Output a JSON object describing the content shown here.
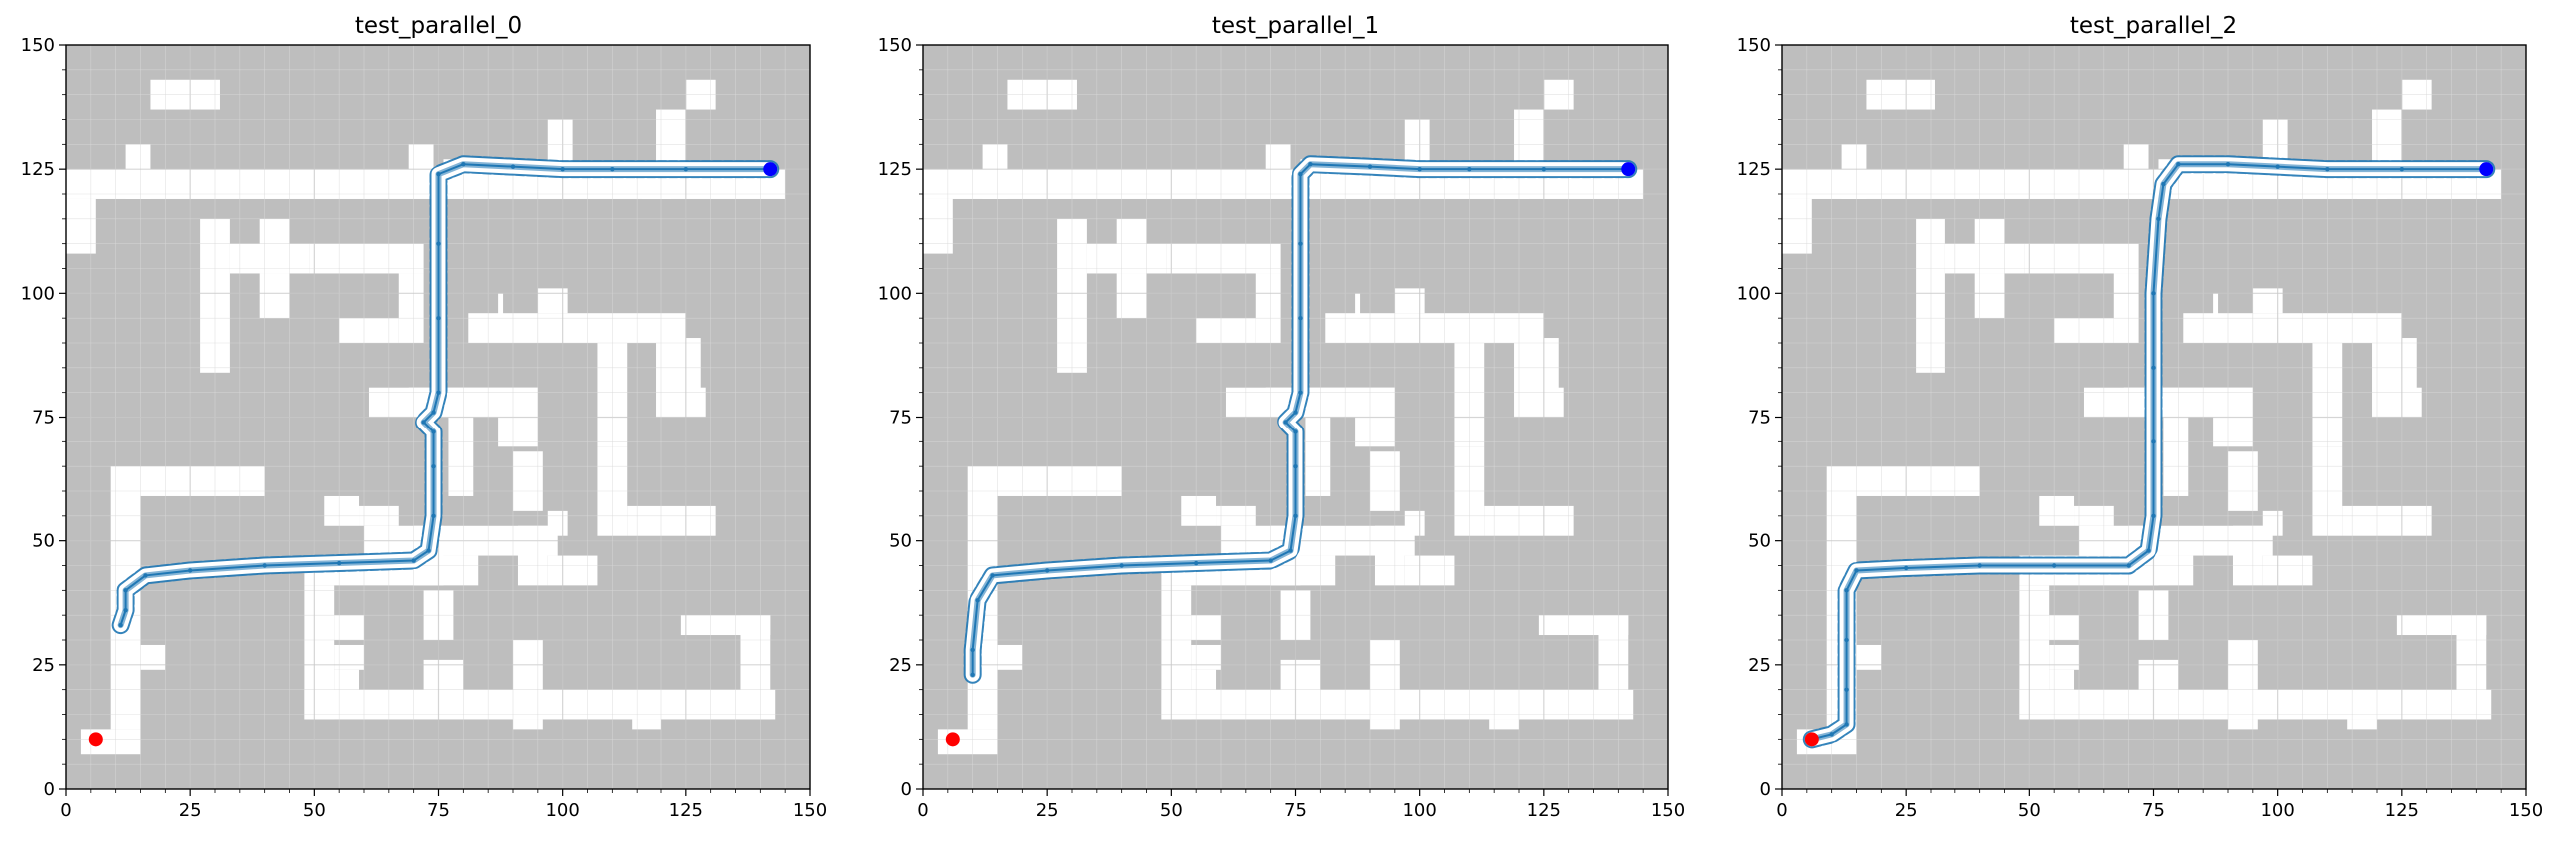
{
  "figure": {
    "colors": {
      "obstacle": "#bebebe",
      "free": "#ffffff",
      "grid": "#d9d9d9",
      "path": "#1f77b4",
      "start": "#ff0000",
      "goal": "#0000ff"
    }
  },
  "chart_data": [
    {
      "type": "scatter",
      "title": "test_parallel_0",
      "xlim": [
        0,
        150
      ],
      "ylim": [
        0,
        150
      ],
      "xticks": [
        0,
        25,
        50,
        75,
        100,
        125,
        150
      ],
      "yticks": [
        0,
        25,
        50,
        75,
        100,
        125,
        150
      ],
      "grid": true,
      "start": [
        6,
        10
      ],
      "goal": [
        142,
        125
      ],
      "path": [
        [
          11,
          33
        ],
        [
          12,
          36
        ],
        [
          12,
          40
        ],
        [
          16,
          43
        ],
        [
          25,
          44
        ],
        [
          40,
          45
        ],
        [
          55,
          45.5
        ],
        [
          70,
          46
        ],
        [
          73,
          48
        ],
        [
          74,
          55
        ],
        [
          74,
          65
        ],
        [
          74,
          72
        ],
        [
          72,
          74
        ],
        [
          74,
          76
        ],
        [
          75,
          80
        ],
        [
          75,
          95
        ],
        [
          75,
          110
        ],
        [
          75,
          124
        ],
        [
          80,
          126
        ],
        [
          90,
          125.5
        ],
        [
          100,
          125
        ],
        [
          110,
          125
        ],
        [
          125,
          125
        ],
        [
          142,
          125
        ]
      ]
    },
    {
      "type": "scatter",
      "title": "test_parallel_1",
      "xlim": [
        0,
        150
      ],
      "ylim": [
        0,
        150
      ],
      "xticks": [
        0,
        25,
        50,
        75,
        100,
        125,
        150
      ],
      "yticks": [
        0,
        25,
        50,
        75,
        100,
        125,
        150
      ],
      "grid": true,
      "start": [
        6,
        10
      ],
      "goal": [
        142,
        125
      ],
      "path": [
        [
          10,
          23
        ],
        [
          10,
          28
        ],
        [
          11,
          38
        ],
        [
          14,
          43
        ],
        [
          25,
          44
        ],
        [
          40,
          45
        ],
        [
          55,
          45.5
        ],
        [
          70,
          46
        ],
        [
          74,
          48
        ],
        [
          75,
          55
        ],
        [
          75,
          65
        ],
        [
          75,
          72
        ],
        [
          73,
          74
        ],
        [
          75,
          76
        ],
        [
          76,
          80
        ],
        [
          76,
          95
        ],
        [
          76,
          110
        ],
        [
          76,
          124
        ],
        [
          78,
          126
        ],
        [
          90,
          125.5
        ],
        [
          100,
          125
        ],
        [
          110,
          125
        ],
        [
          125,
          125
        ],
        [
          142,
          125
        ]
      ]
    },
    {
      "type": "scatter",
      "title": "test_parallel_2",
      "xlim": [
        0,
        150
      ],
      "ylim": [
        0,
        150
      ],
      "xticks": [
        0,
        25,
        50,
        75,
        100,
        125,
        150
      ],
      "yticks": [
        0,
        25,
        50,
        75,
        100,
        125,
        150
      ],
      "grid": true,
      "start": [
        6,
        10
      ],
      "goal": [
        142,
        125
      ],
      "path": [
        [
          6,
          10
        ],
        [
          10,
          11
        ],
        [
          13,
          13
        ],
        [
          13,
          20
        ],
        [
          13,
          30
        ],
        [
          13,
          40
        ],
        [
          15,
          44
        ],
        [
          25,
          44.5
        ],
        [
          40,
          45
        ],
        [
          55,
          45
        ],
        [
          70,
          45
        ],
        [
          74,
          48
        ],
        [
          75,
          55
        ],
        [
          75,
          70
        ],
        [
          75,
          85
        ],
        [
          75,
          100
        ],
        [
          76,
          115
        ],
        [
          77,
          122
        ],
        [
          80,
          126
        ],
        [
          90,
          126
        ],
        [
          100,
          125.5
        ],
        [
          110,
          125
        ],
        [
          125,
          125
        ],
        [
          142,
          125
        ]
      ]
    }
  ]
}
